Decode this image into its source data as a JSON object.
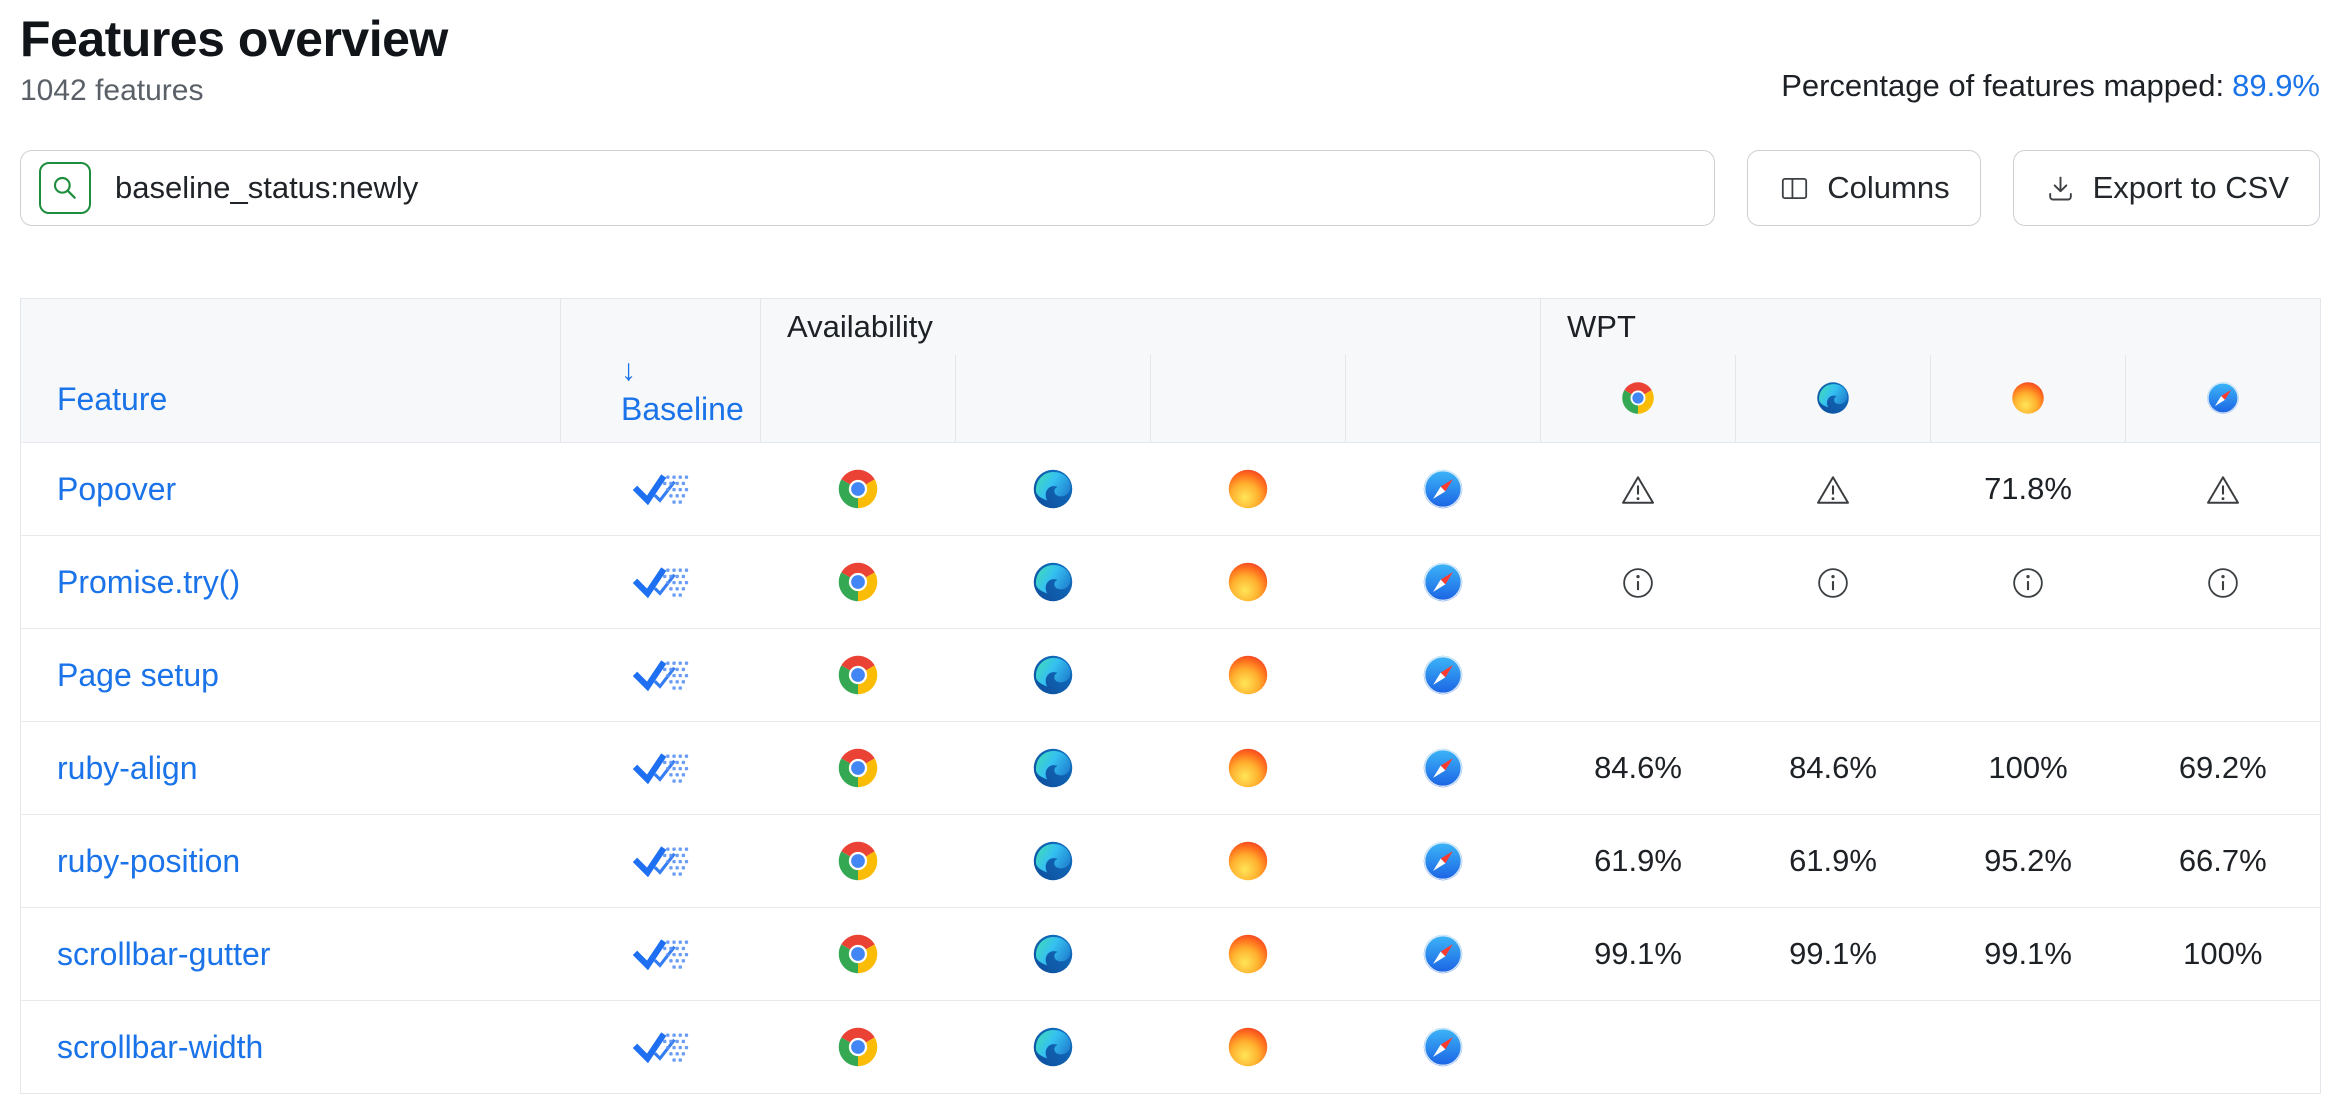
{
  "header": {
    "title": "Features overview",
    "feature_count": "1042 features",
    "mapped_label": "Percentage of features mapped:",
    "mapped_value": "89.9%"
  },
  "toolbar": {
    "search_value": "baseline_status:newly",
    "columns_label": "Columns",
    "export_label": "Export to CSV"
  },
  "table": {
    "group_headers": {
      "availability": "Availability",
      "wpt": "WPT"
    },
    "columns": {
      "feature": "Feature",
      "baseline_sort_arrow": "↓",
      "baseline": "Baseline"
    },
    "wpt_browsers": [
      "chrome",
      "edge",
      "firefox",
      "safari"
    ],
    "rows": [
      {
        "feature": "Popover",
        "baseline": "newly",
        "availability": [
          "chrome",
          "edge",
          "firefox",
          "safari"
        ],
        "wpt": [
          {
            "type": "warning"
          },
          {
            "type": "warning"
          },
          {
            "type": "value",
            "value": "71.8%"
          },
          {
            "type": "warning"
          }
        ]
      },
      {
        "feature": "Promise.try()",
        "baseline": "newly",
        "availability": [
          "chrome",
          "edge",
          "firefox",
          "safari"
        ],
        "wpt": [
          {
            "type": "info"
          },
          {
            "type": "info"
          },
          {
            "type": "info"
          },
          {
            "type": "info"
          }
        ]
      },
      {
        "feature": "Page setup",
        "baseline": "newly",
        "availability": [
          "chrome",
          "edge",
          "firefox",
          "safari"
        ],
        "wpt": [
          {
            "type": "none"
          },
          {
            "type": "none"
          },
          {
            "type": "none"
          },
          {
            "type": "none"
          }
        ]
      },
      {
        "feature": "ruby-align",
        "baseline": "newly",
        "availability": [
          "chrome",
          "edge",
          "firefox",
          "safari"
        ],
        "wpt": [
          {
            "type": "value",
            "value": "84.6%"
          },
          {
            "type": "value",
            "value": "84.6%"
          },
          {
            "type": "value",
            "value": "100%"
          },
          {
            "type": "value",
            "value": "69.2%"
          }
        ]
      },
      {
        "feature": "ruby-position",
        "baseline": "newly",
        "availability": [
          "chrome",
          "edge",
          "firefox",
          "safari"
        ],
        "wpt": [
          {
            "type": "value",
            "value": "61.9%"
          },
          {
            "type": "value",
            "value": "61.9%"
          },
          {
            "type": "value",
            "value": "95.2%"
          },
          {
            "type": "value",
            "value": "66.7%"
          }
        ]
      },
      {
        "feature": "scrollbar-gutter",
        "baseline": "newly",
        "availability": [
          "chrome",
          "edge",
          "firefox",
          "safari"
        ],
        "wpt": [
          {
            "type": "value",
            "value": "99.1%"
          },
          {
            "type": "value",
            "value": "99.1%"
          },
          {
            "type": "value",
            "value": "99.1%"
          },
          {
            "type": "value",
            "value": "100%"
          }
        ]
      },
      {
        "feature": "scrollbar-width",
        "baseline": "newly",
        "availability": [
          "chrome",
          "edge",
          "firefox",
          "safari"
        ],
        "wpt": [
          {
            "type": "none"
          },
          {
            "type": "none"
          },
          {
            "type": "none"
          },
          {
            "type": "none"
          }
        ]
      }
    ]
  },
  "icons": {
    "search": "search-magnifier-icon",
    "columns": "columns-layout-icon",
    "export": "download-icon",
    "sort": "arrow-down-icon",
    "baseline_newly": "baseline-newly-check-icon",
    "warning": "warning-triangle-icon",
    "info": "info-circle-icon",
    "browsers": [
      "chrome-icon",
      "edge-icon",
      "firefox-icon",
      "safari-icon"
    ]
  },
  "colors": {
    "accent_blue": "#1a73e8",
    "search_green": "#1e8e3e",
    "header_bg": "#f6f8fa",
    "table_border": "#e3e6ea",
    "text_dark": "#1d2126",
    "text_gray": "#5a6067"
  }
}
